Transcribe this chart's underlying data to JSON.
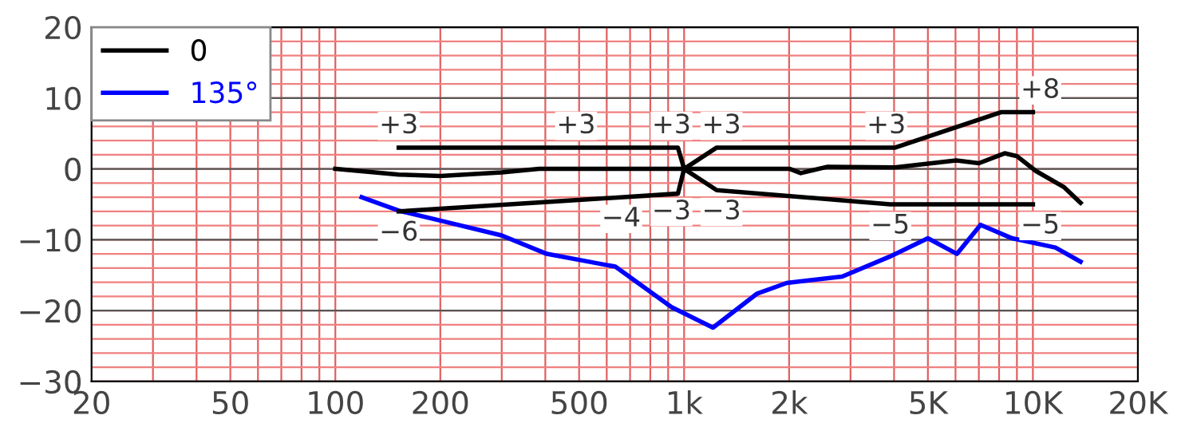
{
  "chart_data": {
    "type": "line",
    "log": "x",
    "xlim": [
      20,
      20000
    ],
    "ylim": [
      -30,
      20
    ],
    "xticks": [
      20,
      50,
      100,
      200,
      500,
      {
        "value": 1000,
        "label": "1k"
      },
      {
        "value": 2000,
        "label": "2k"
      },
      {
        "value": 5000,
        "label": "5K"
      },
      {
        "value": 10000,
        "label": "10K"
      },
      {
        "value": 20000,
        "label": "20K"
      }
    ],
    "yticks": [
      20,
      10,
      0,
      -10,
      -20,
      -30
    ],
    "grid": true,
    "legend": "top left",
    "marker": "none",
    "line_style": "solid",
    "series": [
      {
        "name": "0",
        "color": "#000000",
        "x": [
          100,
          152,
          200,
          300,
          384,
          1000,
          2010,
          2160,
          2580,
          4020,
          6030,
          7000,
          8300,
          9000,
          10200,
          12300,
          13700
        ],
        "values": [
          0,
          -0.8,
          -1,
          -0.5,
          0,
          0,
          0,
          -0.6,
          0.3,
          0.2,
          1.2,
          0.8,
          2.2,
          1.8,
          -0.3,
          -2.6,
          -4.8
        ]
      },
      {
        "name": "135°",
        "color": "#0000ff",
        "x": [
          119,
          152,
          200,
          300,
          404,
          560,
          635,
          920,
          1210,
          1620,
          1970,
          2840,
          3880,
          5000,
          6060,
          7080,
          8720,
          11600,
          13700
        ],
        "values": [
          -4,
          -5.9,
          -7.3,
          -9.4,
          -12,
          -13.3,
          -13.8,
          -19.5,
          -22.4,
          -17.6,
          -16.1,
          -15.2,
          -12.4,
          -9.8,
          -12,
          -7.9,
          -9.8,
          -11.1,
          -13.1
        ]
      },
      {
        "color": "#000000",
        "x": [
          152,
          960,
          1000,
          1240,
          4030,
          8100,
          10000
        ],
        "values": [
          3,
          3,
          0,
          3,
          3,
          8,
          8
        ]
      },
      {
        "color": "#000000",
        "x": [
          152,
          960,
          1000,
          1240,
          3900,
          10000
        ],
        "values": [
          -6,
          -3.5,
          0,
          -3,
          -5,
          -5
        ]
      }
    ],
    "annotations": [
      {
        "text": "+3",
        "x": 152,
        "y": 3
      },
      {
        "text": "+3",
        "x": 490,
        "y": 3
      },
      {
        "text": "+3",
        "x": 920,
        "y": 3
      },
      {
        "text": "+3",
        "x": 1280,
        "y": 3
      },
      {
        "text": "+3",
        "x": 3800,
        "y": 3
      },
      {
        "text": "+8",
        "x": 10500,
        "y": 8
      },
      {
        "text": "−6",
        "x": 152,
        "y": -6
      },
      {
        "text": "−4",
        "x": 660,
        "y": -4
      },
      {
        "text": "−3",
        "x": 920,
        "y": -3
      },
      {
        "text": "−3",
        "x": 1280,
        "y": -3
      },
      {
        "text": "−5",
        "x": 3900,
        "y": -5
      },
      {
        "text": "−5",
        "x": 10500,
        "y": -5
      }
    ]
  }
}
